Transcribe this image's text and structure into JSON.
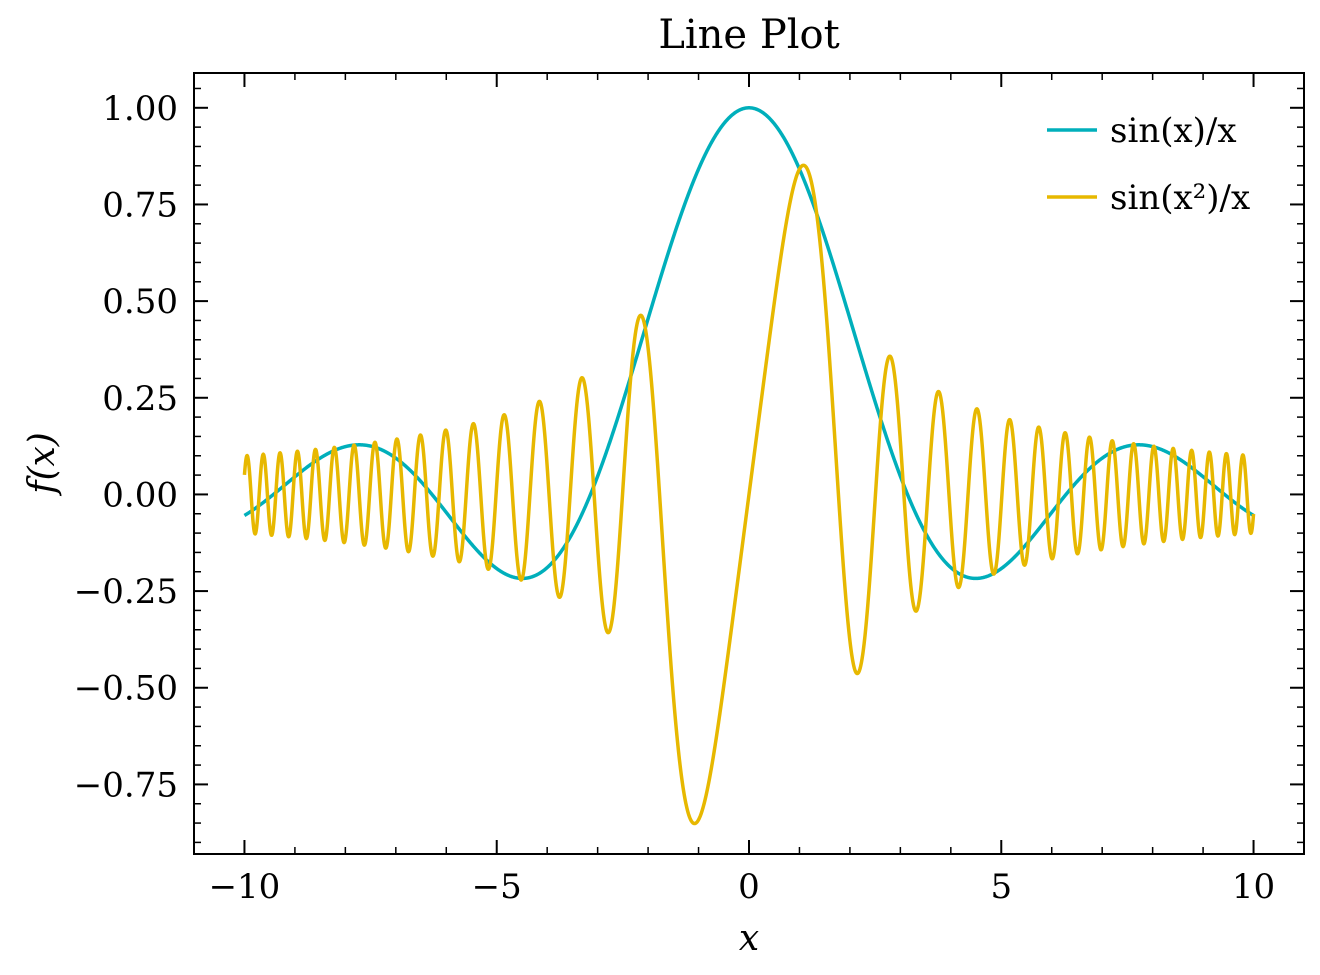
{
  "chart_data": {
    "type": "line",
    "title": "Line Plot",
    "xlabel": "x",
    "ylabel": "f(x)",
    "xlim": [
      -11,
      11
    ],
    "ylim": [
      -0.93,
      1.09
    ],
    "x_ticks": [
      -10,
      -5,
      0,
      5,
      10
    ],
    "x_tick_labels": [
      "−10",
      "−5",
      "0",
      "5",
      "10"
    ],
    "y_ticks": [
      -0.75,
      -0.5,
      -0.25,
      0,
      0.25,
      0.5,
      0.75,
      1.0
    ],
    "y_tick_labels": [
      "−0.75",
      "−0.50",
      "−0.25",
      "0.00",
      "0.25",
      "0.50",
      "0.75",
      "1.00"
    ],
    "x_range": [
      -10,
      10
    ],
    "legend_position": "top-right",
    "series": [
      {
        "name": "sin(x)/x",
        "expression": "sin(x)/x",
        "color": "#00AFBB"
      },
      {
        "name": "sin(x²)/x",
        "expression": "sin(x^2)/x",
        "color": "#E7B800"
      }
    ]
  }
}
